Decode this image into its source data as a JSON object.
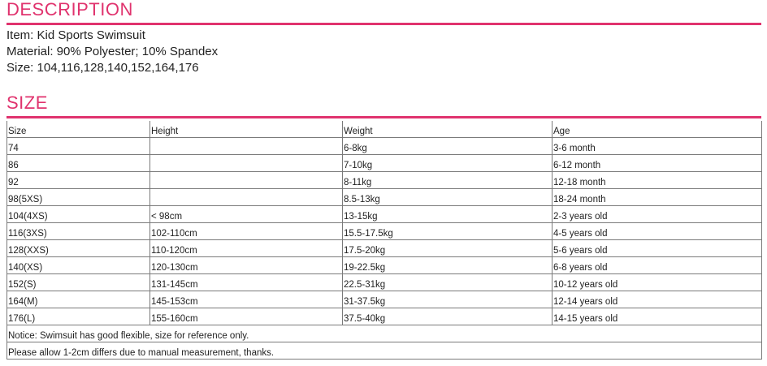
{
  "description": {
    "title": "DESCRIPTION",
    "lines": [
      "Item: Kid Sports Swimsuit",
      "Material: 90% Polyester; 10% Spandex",
      "Size: 104,116,128,140,152,164,176"
    ]
  },
  "size_section": {
    "title": "SIZE",
    "headers": [
      "Size",
      "Height",
      "Weight",
      "Age"
    ],
    "rows": [
      [
        "74",
        "",
        "6-8kg",
        "3-6 month"
      ],
      [
        "86",
        "",
        "7-10kg",
        "6-12 month"
      ],
      [
        "92",
        "",
        "8-11kg",
        "12-18 month"
      ],
      [
        "98(5XS)",
        "",
        "8.5-13kg",
        "18-24 month"
      ],
      [
        "104(4XS)",
        "< 98cm",
        "13-15kg",
        "2-3 years old"
      ],
      [
        "116(3XS)",
        "102-110cm",
        "15.5-17.5kg",
        "4-5 years old"
      ],
      [
        "128(XXS)",
        "110-120cm",
        "17.5-20kg",
        "5-6 years old"
      ],
      [
        "140(XS)",
        "120-130cm",
        "19-22.5kg",
        "6-8 years old"
      ],
      [
        "152(S)",
        "131-145cm",
        "22.5-31kg",
        "10-12 years old"
      ],
      [
        "164(M)",
        "145-153cm",
        "31-37.5kg",
        "12-14 years old"
      ],
      [
        "176(L)",
        "155-160cm",
        "37.5-40kg",
        "14-15 years old"
      ]
    ],
    "notes": [
      "Notice: Swimsuit has good flexible, size for reference only.",
      "Please allow 1-2cm differs due to manual measurement, thanks."
    ]
  },
  "colors": {
    "accent": "#e0336e",
    "text": "#222222",
    "border": "#7a7a7a"
  }
}
